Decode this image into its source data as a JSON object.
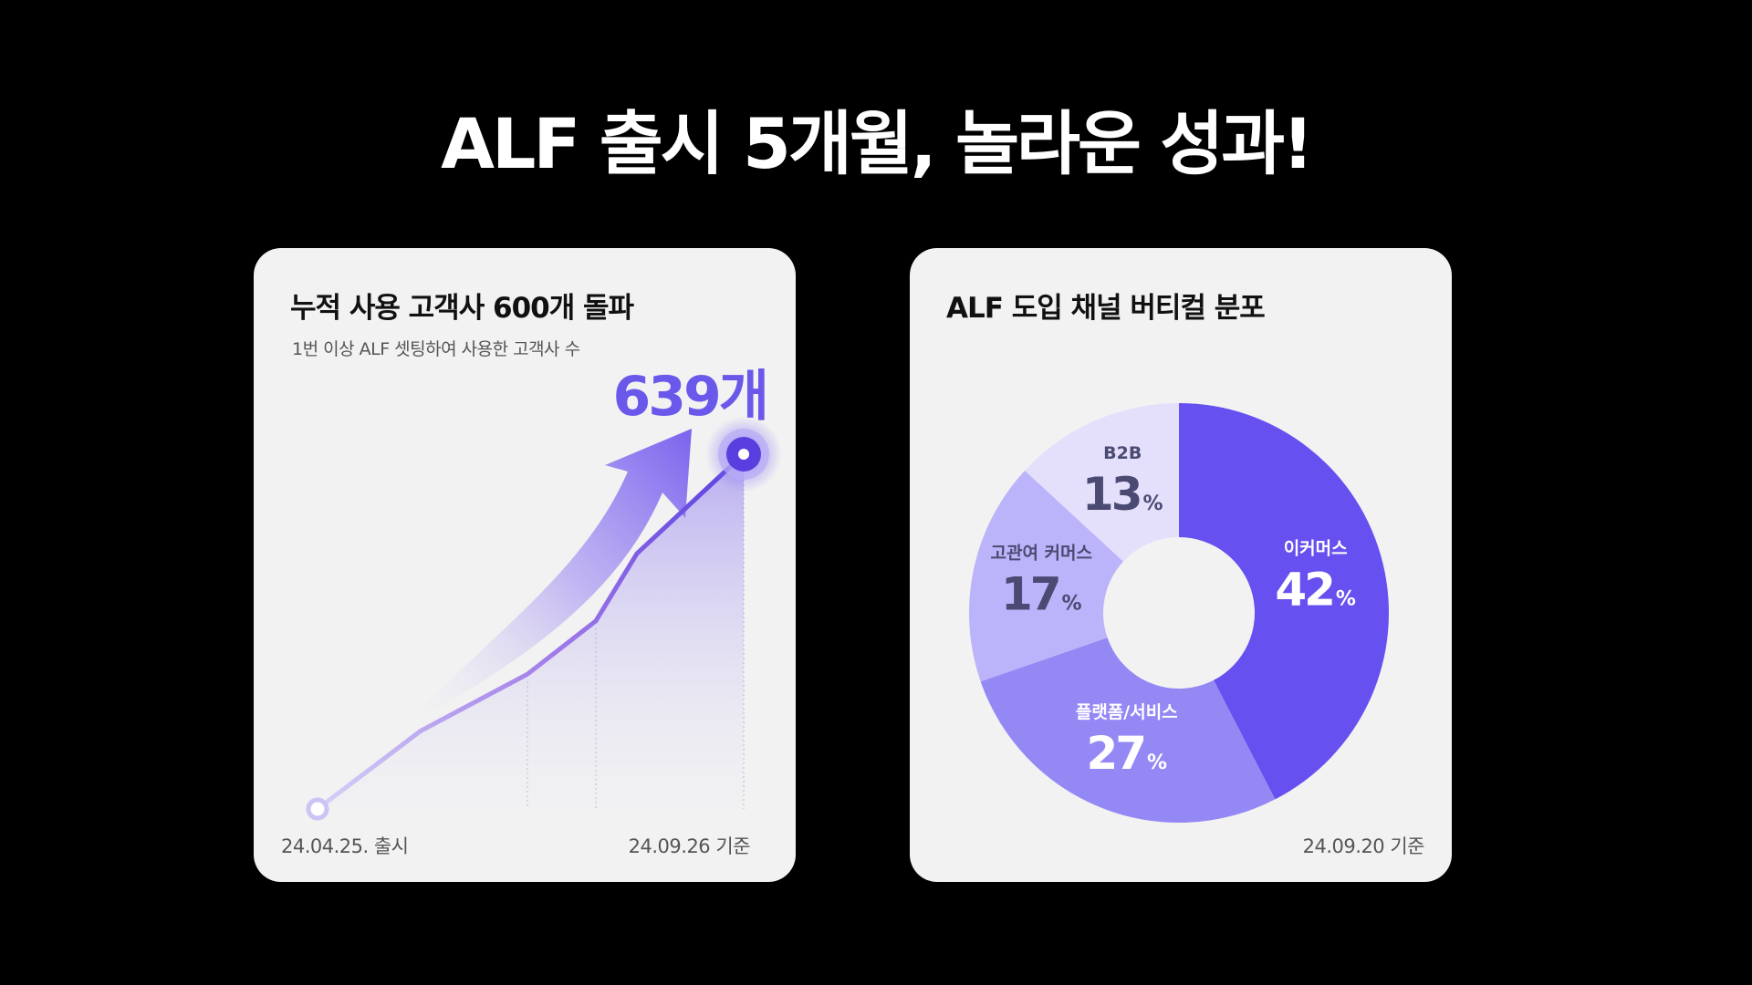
{
  "headline": "ALF 출시 5개월, 놀라운 성과!",
  "left_card": {
    "title": "누적 사용 고객사 600개 돌파",
    "subtitle": "1번 이상 ALF 셋팅하여 사용한 고객사 수",
    "value": "639개",
    "start_label": "24.04.25. 출시",
    "end_label": "24.09.26 기준"
  },
  "right_card": {
    "title": "ALF 도입 채널 버티컬 분포",
    "footnote": "24.09.20 기준"
  },
  "colors": {
    "background": "#000000",
    "card": "#f2f2f2",
    "accent": "#6a58ea",
    "slice_ecommerce": "#6650f0",
    "slice_platform": "#9488f5",
    "slice_cs": "#bcb4fa",
    "slice_b2b": "#e4e0fc"
  },
  "chart_data": [
    {
      "type": "line",
      "title": "누적 사용 고객사 600개 돌파",
      "x": [
        "24.04.25.",
        "",
        "",
        "",
        "",
        "24.09.26"
      ],
      "y": [
        0,
        0.22,
        0.38,
        0.53,
        0.72,
        1.0
      ],
      "end_value": 639,
      "end_label": "639개",
      "grid": "vertical dotted"
    },
    {
      "type": "pie",
      "subtype": "donut",
      "title": "ALF 도입 채널 버티컬 분포",
      "unit": "%",
      "slices": [
        {
          "label": "이커머스",
          "value": 42,
          "color": "#6650f0",
          "text_color": "#ffffff"
        },
        {
          "label": "플랫폼/서비스",
          "value": 27,
          "color": "#9488f5",
          "text_color": "#ffffff"
        },
        {
          "label": "고관여 커머스",
          "value": 17,
          "color": "#bcb4fa",
          "text_color": "#4a4a72"
        },
        {
          "label": "B2B",
          "value": 13,
          "color": "#e4e0fc",
          "text_color": "#4a4a72"
        }
      ]
    }
  ]
}
